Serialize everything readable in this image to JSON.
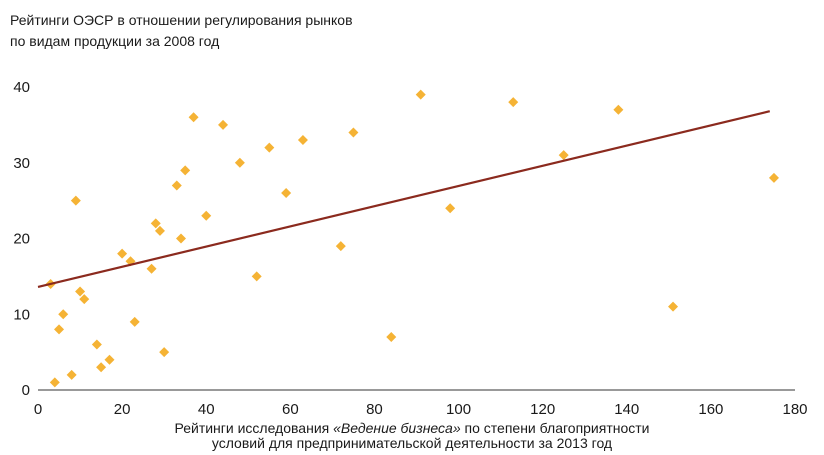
{
  "chart_data": {
    "type": "scatter",
    "title": "",
    "ylabel_lines": [
      "Рейтинги ОЭСР в отношении регулирования рынков",
      "по видам продукции за 2008 год"
    ],
    "xlabel": {
      "prefix": "Рейтинги исследования ",
      "italic": "«Ведение бизнеса»",
      "suffix": " по степени благоприятности",
      "line2": "условий для предпринимательской деятельности за 2013 год"
    },
    "xlim": [
      0,
      180
    ],
    "ylim": [
      0,
      40
    ],
    "xticks": [
      0,
      20,
      40,
      60,
      80,
      100,
      120,
      140,
      160,
      180
    ],
    "yticks": [
      0,
      10,
      20,
      30,
      40
    ],
    "grid": false,
    "marker_color": "#F5B335",
    "trend_color": "#8B2A1E",
    "trendline": {
      "x": [
        0,
        174
      ],
      "y": [
        13.6,
        36.8
      ]
    },
    "points": [
      {
        "x": 3,
        "y": 14
      },
      {
        "x": 4,
        "y": 1
      },
      {
        "x": 5,
        "y": 8
      },
      {
        "x": 6,
        "y": 10
      },
      {
        "x": 8,
        "y": 2
      },
      {
        "x": 9,
        "y": 25
      },
      {
        "x": 10,
        "y": 13
      },
      {
        "x": 11,
        "y": 12
      },
      {
        "x": 14,
        "y": 6
      },
      {
        "x": 15,
        "y": 3
      },
      {
        "x": 17,
        "y": 4
      },
      {
        "x": 20,
        "y": 18
      },
      {
        "x": 22,
        "y": 17
      },
      {
        "x": 23,
        "y": 9
      },
      {
        "x": 27,
        "y": 16
      },
      {
        "x": 28,
        "y": 22
      },
      {
        "x": 29,
        "y": 21
      },
      {
        "x": 30,
        "y": 5
      },
      {
        "x": 33,
        "y": 27
      },
      {
        "x": 34,
        "y": 20
      },
      {
        "x": 35,
        "y": 29
      },
      {
        "x": 37,
        "y": 36
      },
      {
        "x": 40,
        "y": 23
      },
      {
        "x": 44,
        "y": 35
      },
      {
        "x": 48,
        "y": 30
      },
      {
        "x": 52,
        "y": 15
      },
      {
        "x": 55,
        "y": 32
      },
      {
        "x": 59,
        "y": 26
      },
      {
        "x": 63,
        "y": 33
      },
      {
        "x": 72,
        "y": 19
      },
      {
        "x": 75,
        "y": 34
      },
      {
        "x": 84,
        "y": 7
      },
      {
        "x": 91,
        "y": 39
      },
      {
        "x": 98,
        "y": 24
      },
      {
        "x": 113,
        "y": 38
      },
      {
        "x": 125,
        "y": 31
      },
      {
        "x": 138,
        "y": 37
      },
      {
        "x": 151,
        "y": 11
      },
      {
        "x": 175,
        "y": 28
      }
    ]
  }
}
